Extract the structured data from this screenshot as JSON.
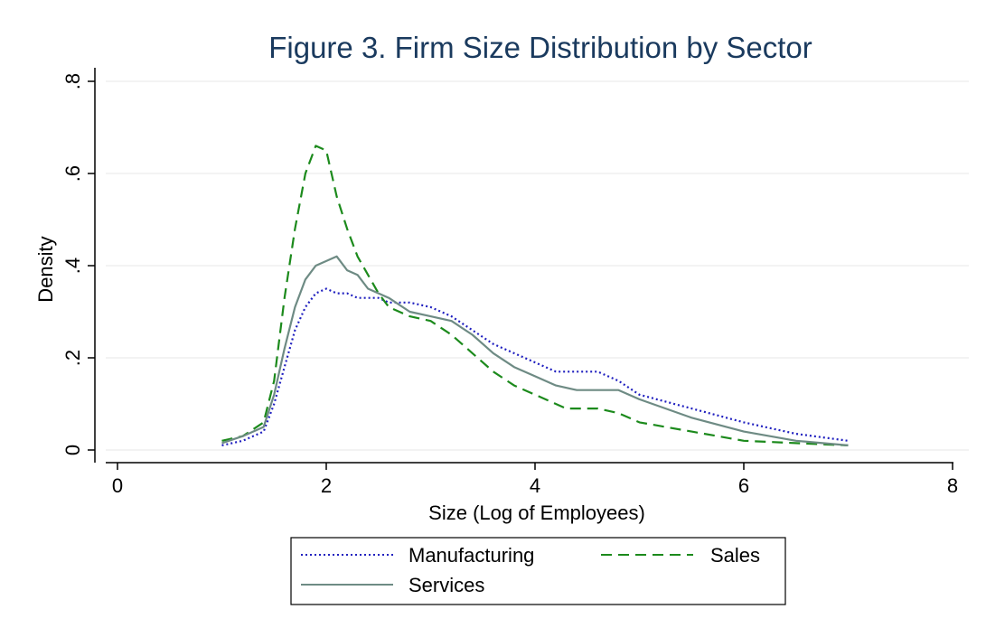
{
  "chart_data": {
    "type": "line",
    "title": "Figure 3. Firm Size Distribution by Sector",
    "xlabel": "Size (Log of Employees)",
    "ylabel": "Density",
    "xlim": [
      0,
      8
    ],
    "ylim": [
      0,
      0.8
    ],
    "x_ticks": [
      0,
      2,
      4,
      6,
      8
    ],
    "x_tick_labels": [
      "0",
      "2",
      "4",
      "6",
      "8"
    ],
    "y_ticks": [
      0,
      0.2,
      0.4,
      0.6,
      0.8
    ],
    "y_tick_labels": [
      "0",
      ".2",
      ".4",
      ".6",
      ".8"
    ],
    "grid": "horizontal",
    "legend_position": "bottom",
    "series": [
      {
        "name": "Manufacturing",
        "color": "#1f1fbf",
        "style": "dotted",
        "x": [
          1.0,
          1.2,
          1.4,
          1.5,
          1.6,
          1.7,
          1.8,
          1.9,
          2.0,
          2.1,
          2.2,
          2.3,
          2.4,
          2.5,
          2.6,
          2.8,
          3.0,
          3.2,
          3.4,
          3.6,
          3.8,
          4.0,
          4.2,
          4.4,
          4.6,
          4.8,
          5.0,
          5.5,
          6.0,
          6.5,
          7.0
        ],
        "values": [
          0.01,
          0.02,
          0.04,
          0.1,
          0.18,
          0.26,
          0.31,
          0.34,
          0.35,
          0.34,
          0.34,
          0.33,
          0.33,
          0.33,
          0.32,
          0.32,
          0.31,
          0.29,
          0.26,
          0.23,
          0.21,
          0.19,
          0.17,
          0.17,
          0.17,
          0.15,
          0.12,
          0.09,
          0.06,
          0.035,
          0.02
        ]
      },
      {
        "name": "Sales",
        "color": "#1c8a1c",
        "style": "dashed",
        "x": [
          1.0,
          1.2,
          1.4,
          1.5,
          1.6,
          1.7,
          1.8,
          1.9,
          2.0,
          2.05,
          2.1,
          2.2,
          2.3,
          2.4,
          2.5,
          2.6,
          2.8,
          3.0,
          3.2,
          3.4,
          3.6,
          3.8,
          4.0,
          4.3,
          4.6,
          4.8,
          5.0,
          5.5,
          6.0,
          6.5,
          7.0
        ],
        "values": [
          0.02,
          0.03,
          0.06,
          0.15,
          0.33,
          0.48,
          0.6,
          0.66,
          0.65,
          0.6,
          0.55,
          0.48,
          0.42,
          0.38,
          0.34,
          0.31,
          0.29,
          0.28,
          0.25,
          0.21,
          0.17,
          0.14,
          0.12,
          0.09,
          0.09,
          0.08,
          0.06,
          0.04,
          0.02,
          0.015,
          0.01
        ]
      },
      {
        "name": "Services",
        "color": "#6e8b84",
        "style": "solid",
        "x": [
          1.0,
          1.2,
          1.4,
          1.5,
          1.6,
          1.7,
          1.8,
          1.9,
          2.0,
          2.1,
          2.2,
          2.3,
          2.4,
          2.5,
          2.6,
          2.8,
          3.0,
          3.2,
          3.4,
          3.6,
          3.8,
          4.0,
          4.2,
          4.4,
          4.6,
          4.8,
          5.0,
          5.5,
          6.0,
          6.5,
          7.0
        ],
        "values": [
          0.015,
          0.03,
          0.05,
          0.12,
          0.22,
          0.31,
          0.37,
          0.4,
          0.41,
          0.42,
          0.39,
          0.38,
          0.35,
          0.34,
          0.33,
          0.3,
          0.29,
          0.28,
          0.25,
          0.21,
          0.18,
          0.16,
          0.14,
          0.13,
          0.13,
          0.13,
          0.11,
          0.07,
          0.04,
          0.02,
          0.01
        ]
      }
    ]
  }
}
